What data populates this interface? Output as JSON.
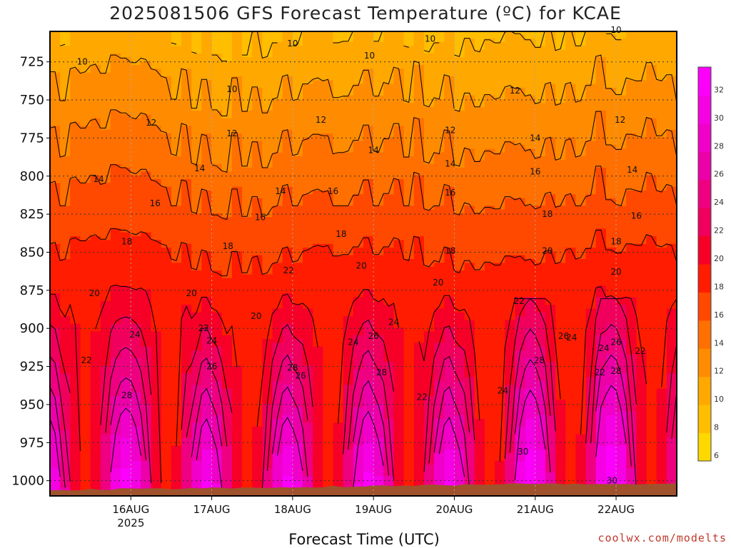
{
  "title": "2025081506 GFS Forecast Temperature (ºC) for KCAE",
  "credit": "coolwx.com/modelts",
  "chart_data": {
    "type": "heatmap",
    "title": "2025081506 GFS Forecast Temperature (ºC) for KCAE",
    "xlabel": "Forecast Time (UTC)",
    "ylabel": "",
    "y_axis": {
      "scale": "linear-inverted",
      "range": [
        1010,
        705
      ],
      "unit": "hPa",
      "ticks": [
        725,
        750,
        775,
        800,
        825,
        850,
        875,
        900,
        925,
        950,
        975,
        1000
      ]
    },
    "x_axis": {
      "ticks": [
        "16AUG",
        "17AUG",
        "18AUG",
        "19AUG",
        "20AUG",
        "21AUG",
        "22AUG"
      ],
      "tick_days": [
        1,
        2,
        3,
        4,
        5,
        6,
        7
      ],
      "range_days": [
        0.0,
        7.75
      ],
      "year_label": "2025"
    },
    "grid": true,
    "colorbar": {
      "position": "right",
      "levels": [
        6,
        8,
        10,
        12,
        14,
        16,
        18,
        20,
        22,
        24,
        26,
        28,
        30,
        32
      ]
    },
    "contour_labels": [
      {
        "v": 10,
        "day": 0.4,
        "p": 725
      },
      {
        "v": 10,
        "day": 2.25,
        "p": 743
      },
      {
        "v": 10,
        "day": 3.0,
        "p": 713
      },
      {
        "v": 10,
        "day": 3.95,
        "p": 721
      },
      {
        "v": 10,
        "day": 4.7,
        "p": 710
      },
      {
        "v": 10,
        "day": 7.0,
        "p": 704
      },
      {
        "v": 12,
        "day": 1.25,
        "p": 765
      },
      {
        "v": 12,
        "day": 2.25,
        "p": 772
      },
      {
        "v": 12,
        "day": 3.35,
        "p": 763
      },
      {
        "v": 12,
        "day": 4.95,
        "p": 770
      },
      {
        "v": 12,
        "day": 5.75,
        "p": 744
      },
      {
        "v": 12,
        "day": 7.05,
        "p": 763
      },
      {
        "v": 14,
        "day": 0.6,
        "p": 802
      },
      {
        "v": 14,
        "day": 1.85,
        "p": 795
      },
      {
        "v": 14,
        "day": 2.85,
        "p": 810
      },
      {
        "v": 14,
        "day": 4.0,
        "p": 783
      },
      {
        "v": 14,
        "day": 4.95,
        "p": 792
      },
      {
        "v": 14,
        "day": 6.0,
        "p": 775
      },
      {
        "v": 14,
        "day": 7.2,
        "p": 796
      },
      {
        "v": 16,
        "day": 1.3,
        "p": 818
      },
      {
        "v": 16,
        "day": 2.6,
        "p": 827
      },
      {
        "v": 16,
        "day": 3.5,
        "p": 810
      },
      {
        "v": 16,
        "day": 4.95,
        "p": 811
      },
      {
        "v": 16,
        "day": 6.0,
        "p": 797
      },
      {
        "v": 16,
        "day": 7.25,
        "p": 826
      },
      {
        "v": 18,
        "day": 0.95,
        "p": 843
      },
      {
        "v": 18,
        "day": 2.2,
        "p": 846
      },
      {
        "v": 18,
        "day": 3.6,
        "p": 838
      },
      {
        "v": 18,
        "day": 4.95,
        "p": 849
      },
      {
        "v": 18,
        "day": 6.15,
        "p": 825
      },
      {
        "v": 18,
        "day": 7.0,
        "p": 843
      },
      {
        "v": 20,
        "day": 0.55,
        "p": 877
      },
      {
        "v": 20,
        "day": 1.75,
        "p": 877
      },
      {
        "v": 20,
        "day": 2.55,
        "p": 892
      },
      {
        "v": 20,
        "day": 3.85,
        "p": 859
      },
      {
        "v": 20,
        "day": 4.8,
        "p": 870
      },
      {
        "v": 20,
        "day": 6.15,
        "p": 849
      },
      {
        "v": 20,
        "day": 7.0,
        "p": 863
      },
      {
        "v": 22,
        "day": 0.45,
        "p": 921
      },
      {
        "v": 22,
        "day": 1.9,
        "p": 900
      },
      {
        "v": 22,
        "day": 2.95,
        "p": 862
      },
      {
        "v": 22,
        "day": 4.6,
        "p": 945
      },
      {
        "v": 22,
        "day": 5.8,
        "p": 882
      },
      {
        "v": 22,
        "day": 6.8,
        "p": 929
      },
      {
        "v": 22,
        "day": 7.3,
        "p": 915
      },
      {
        "v": 24,
        "day": 1.05,
        "p": 904
      },
      {
        "v": 24,
        "day": 2.0,
        "p": 908
      },
      {
        "v": 24,
        "day": 3.75,
        "p": 909
      },
      {
        "v": 24,
        "day": 4.25,
        "p": 896
      },
      {
        "v": 24,
        "day": 5.6,
        "p": 941
      },
      {
        "v": 24,
        "day": 6.45,
        "p": 906
      },
      {
        "v": 24,
        "day": 6.85,
        "p": 913
      },
      {
        "v": 26,
        "day": 2.0,
        "p": 925
      },
      {
        "v": 26,
        "day": 3.1,
        "p": 931
      },
      {
        "v": 26,
        "day": 4.0,
        "p": 905
      },
      {
        "v": 26,
        "day": 6.35,
        "p": 905
      },
      {
        "v": 26,
        "day": 7.0,
        "p": 909
      },
      {
        "v": 28,
        "day": 0.95,
        "p": 944
      },
      {
        "v": 28,
        "day": 3.0,
        "p": 926
      },
      {
        "v": 28,
        "day": 4.1,
        "p": 929
      },
      {
        "v": 28,
        "day": 6.05,
        "p": 921
      },
      {
        "v": 28,
        "day": 7.0,
        "p": 928
      },
      {
        "v": 30,
        "day": 5.85,
        "p": 981
      },
      {
        "v": 30,
        "day": 6.95,
        "p": 1000
      }
    ]
  }
}
